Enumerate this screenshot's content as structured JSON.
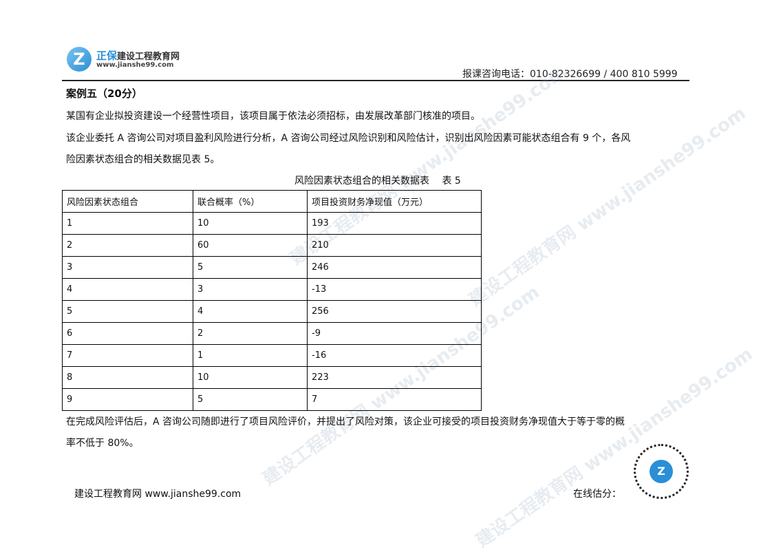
{
  "header": {
    "brand_cn": "正保",
    "brand_name": "建设工程教育网",
    "url": "www.jianshe99.com",
    "phone": "报课咨询电话：010-82326699 / 400 810 5999"
  },
  "case": {
    "title": "案例五（20分）",
    "paragraphs": [
      "某国有企业拟投资建设一个经营性项目，该项目属于依法必须招标，由发展改革部门核准的项目。",
      "该企业委托 A 咨询公司对项目盈利风险进行分析，A 咨询公司经过风险识别和风险估计，识别出风险因素可能状态组合有 9 个，各风",
      "险因素状态组合的相关数据见表 5。"
    ],
    "table_caption": "风险因素状态组合的相关数据表　 表 5",
    "table": {
      "headers": [
        "风险因素状态组合",
        "联合概率（%）",
        "项目投资财务净现值（万元）"
      ],
      "rows": [
        [
          "1",
          "10",
          "193"
        ],
        [
          "2",
          "60",
          "210"
        ],
        [
          "3",
          "5",
          "246"
        ],
        [
          "4",
          "3",
          "-13"
        ],
        [
          "5",
          "4",
          "256"
        ],
        [
          "6",
          "2",
          "-9"
        ],
        [
          "7",
          "1",
          "-16"
        ],
        [
          "8",
          "10",
          "223"
        ],
        [
          "9",
          "5",
          "7"
        ]
      ]
    },
    "after": [
      "在完成风险评估后，A 咨询公司随即进行了项目风险评价，并提出了风险对策，该企业可接受的项目投资财务净现值大于等于零的概",
      "率不低于 80%。"
    ]
  },
  "footer": {
    "text": "建设工程教育网 www.jianshe99.com",
    "score_label": "在线估分："
  },
  "watermark": "建设工程教育网 www.jianshe99.com"
}
